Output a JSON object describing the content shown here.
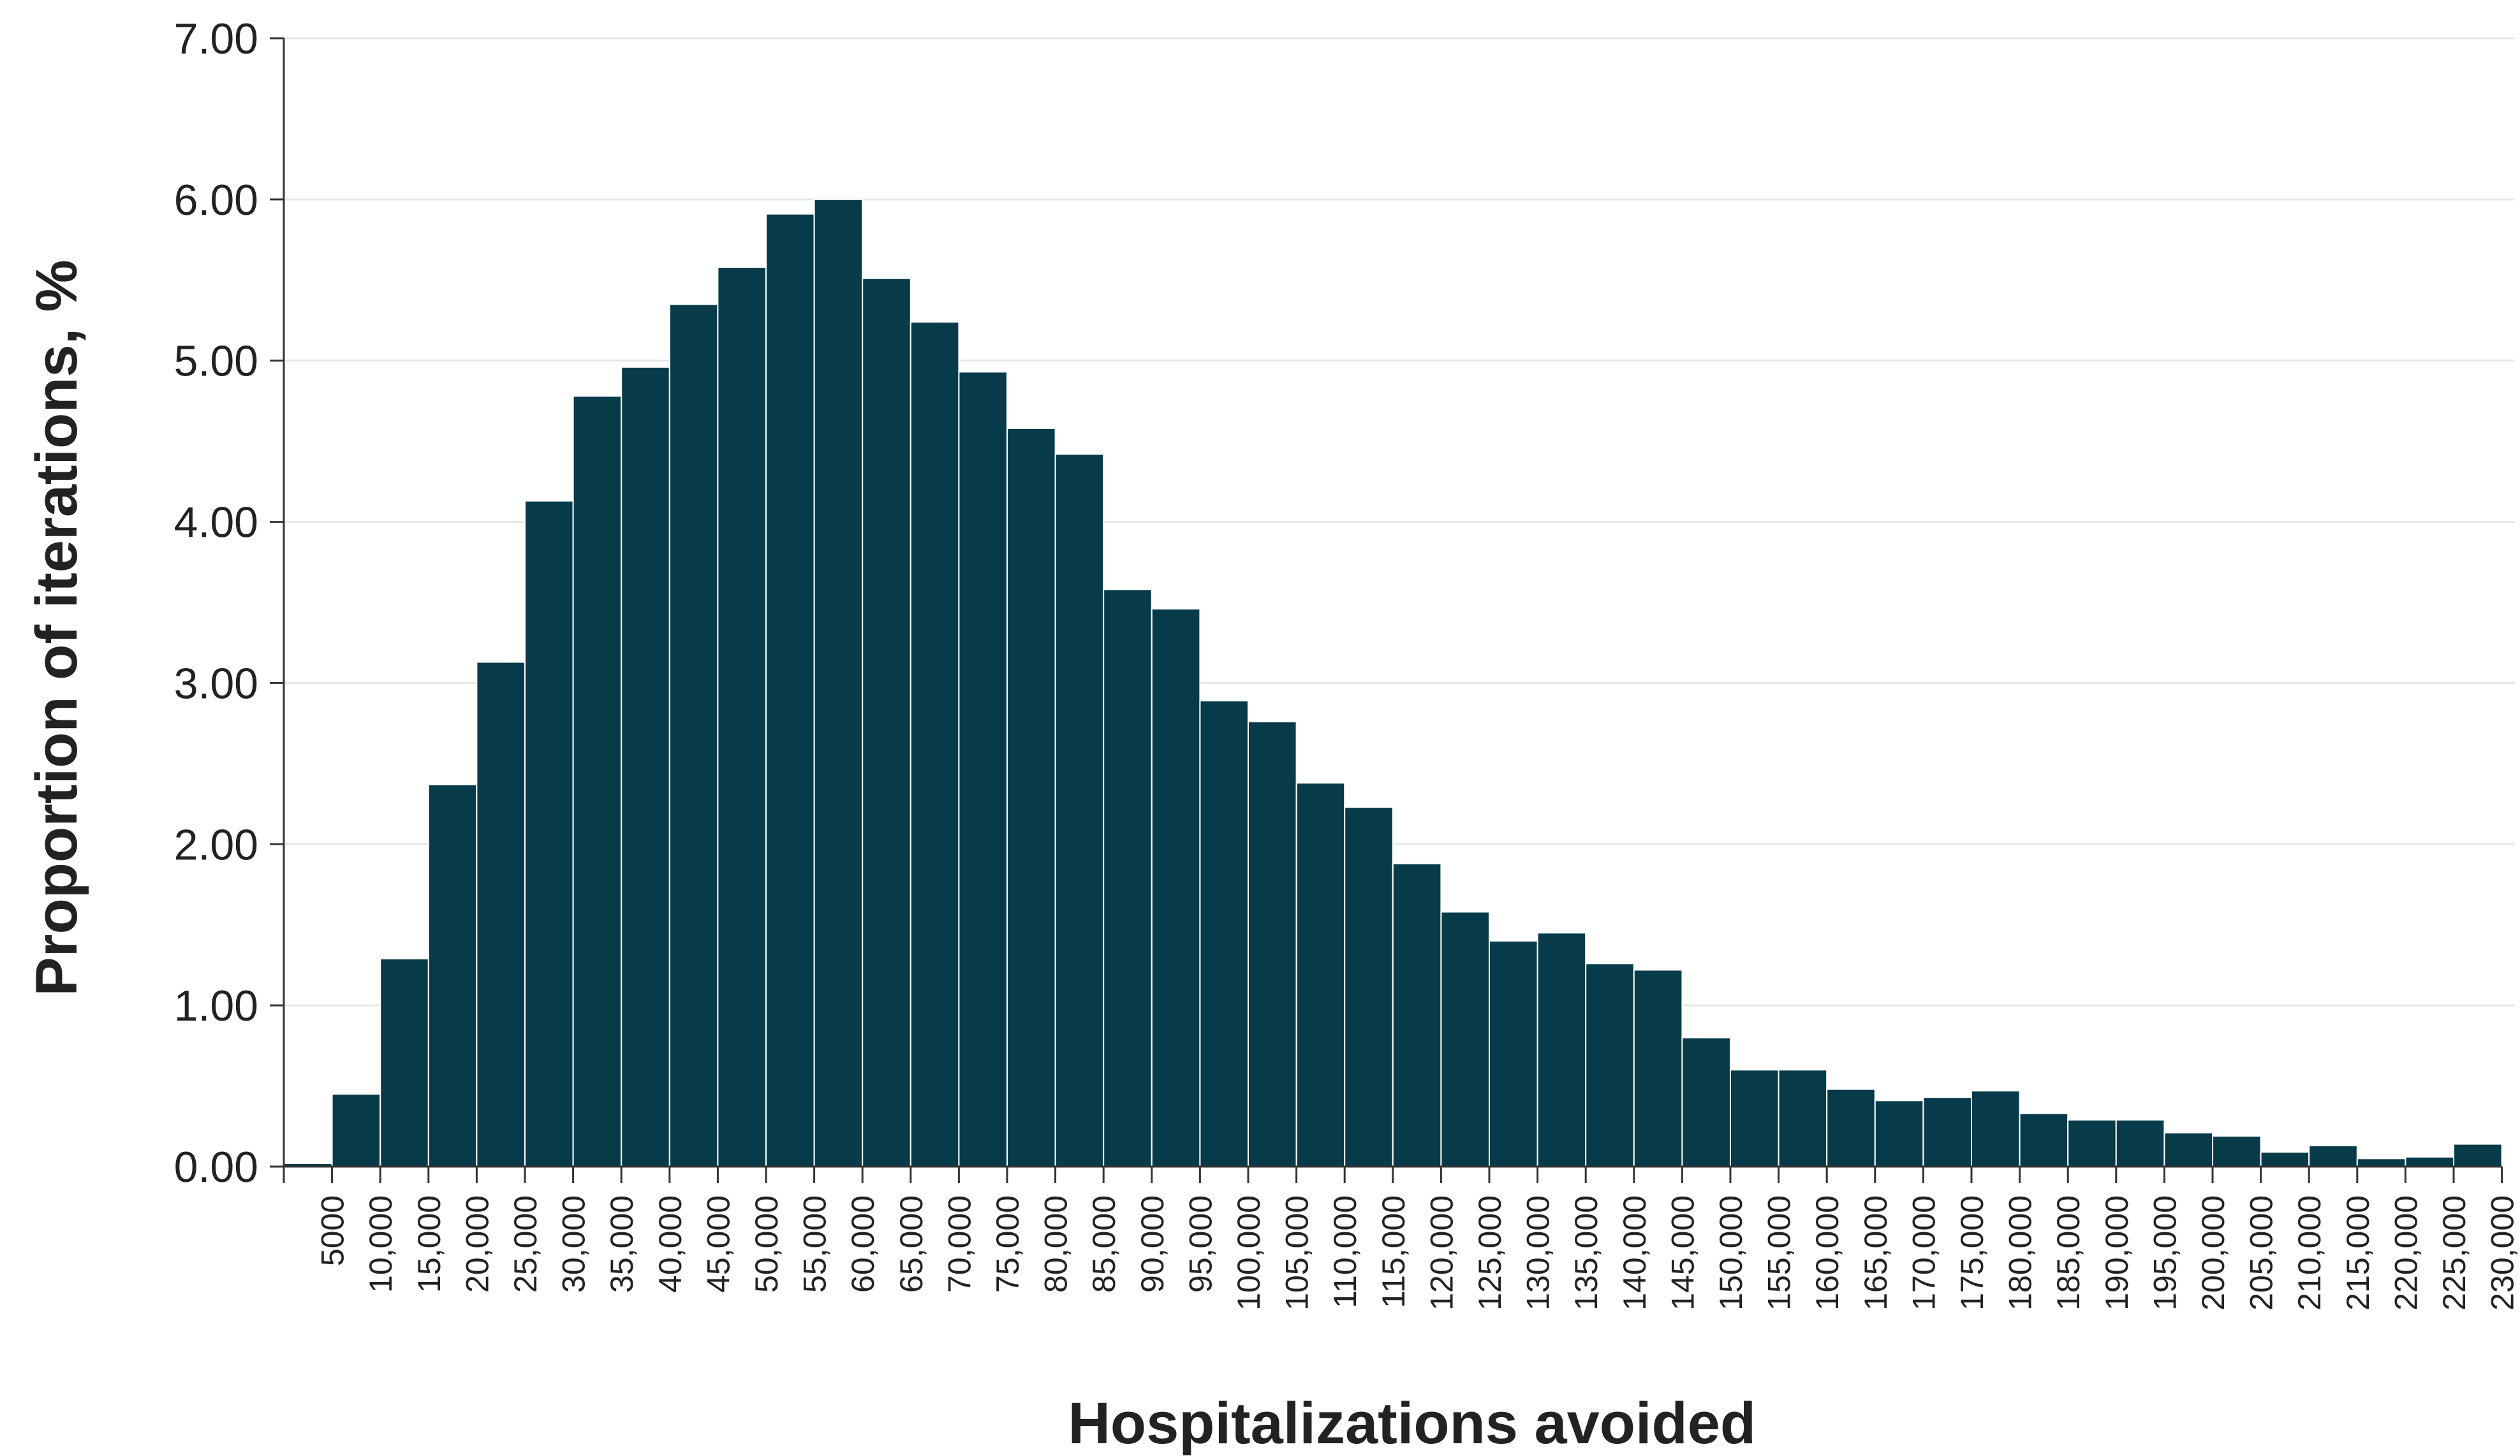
{
  "chart_data": {
    "type": "bar",
    "title": "",
    "xlabel": "Hospitalizations avoided",
    "ylabel": "Proportion of iterations, %",
    "ylim": [
      0,
      7
    ],
    "y_ticks": [
      "0.00",
      "1.00",
      "2.00",
      "3.00",
      "4.00",
      "5.00",
      "6.00",
      "7.00"
    ],
    "grid": "horizontal",
    "bar_color": "#073B4A",
    "categories": [
      "5000",
      "10,000",
      "15,000",
      "20,000",
      "25,000",
      "30,000",
      "35,000",
      "40,000",
      "45,000",
      "50,000",
      "55,000",
      "60,000",
      "65,000",
      "70,000",
      "75,000",
      "80,000",
      "85,000",
      "90,000",
      "95,000",
      "100,000",
      "105,000",
      "110,000",
      "115,000",
      "120,000",
      "125,000",
      "130,000",
      "135,000",
      "140,000",
      "145,000",
      "150,000",
      "155,000",
      "160,000",
      "165,000",
      "170,000",
      "175,000",
      "180,000",
      "185,000",
      "190,000",
      "195,000",
      "200,000",
      "205,000",
      "210,000",
      "215,000",
      "220,000",
      "225,000",
      "230,000"
    ],
    "values": [
      0.02,
      0.45,
      1.29,
      2.37,
      3.13,
      4.13,
      4.78,
      4.96,
      5.35,
      5.58,
      5.91,
      6.0,
      5.51,
      5.24,
      4.93,
      4.58,
      4.42,
      3.58,
      3.46,
      2.89,
      2.76,
      2.38,
      2.23,
      1.88,
      1.58,
      1.4,
      1.45,
      1.26,
      1.22,
      0.8,
      0.6,
      0.6,
      0.48,
      0.41,
      0.43,
      0.47,
      0.33,
      0.29,
      0.29,
      0.21,
      0.19,
      0.09,
      0.13,
      0.05,
      0.06,
      0.14
    ]
  }
}
